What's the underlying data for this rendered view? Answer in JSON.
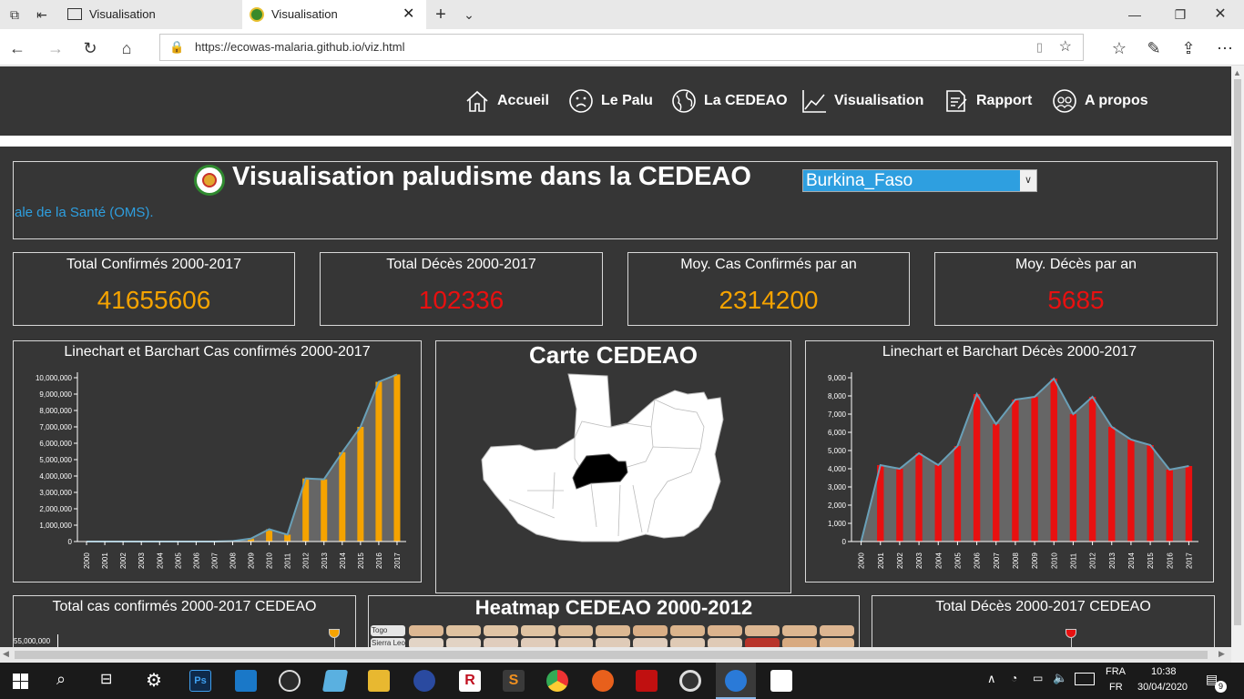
{
  "browser": {
    "tabs": [
      {
        "title": "Visualisation",
        "active": false
      },
      {
        "title": "Visualisation",
        "active": true
      }
    ],
    "url": "https://ecowas-malaria.github.io/viz.html"
  },
  "nav": {
    "items": [
      {
        "label": "Accueil",
        "icon": "home-icon"
      },
      {
        "label": "Le Palu",
        "icon": "sad-face-icon"
      },
      {
        "label": "La CEDEAO",
        "icon": "globe-icon"
      },
      {
        "label": "Visualisation",
        "icon": "line-chart-icon"
      },
      {
        "label": "Rapport",
        "icon": "report-icon"
      },
      {
        "label": "A propos",
        "icon": "people-icon"
      }
    ]
  },
  "header": {
    "title": "Visualisation paludisme dans la CEDEAO",
    "country_select": "Burkina_Faso",
    "scroll_text": "ale de la Santé (OMS)."
  },
  "kpis": [
    {
      "label": "Total Confirmés 2000-2017",
      "value": "41655606",
      "color": "#f5a300"
    },
    {
      "label": "Total Décès 2000-2017",
      "value": "102336",
      "color": "#e81010"
    },
    {
      "label": "Moy. Cas Confirmés par an",
      "value": "2314200",
      "color": "#f5a300"
    },
    {
      "label": "Moy. Décès par an",
      "value": "5685",
      "color": "#e81010"
    }
  ],
  "panels": {
    "cases_chart_title": "Linechart et Barchart Cas confirmés 2000-2017",
    "map_title": "Carte CEDEAO",
    "deaths_chart_title": "Linechart et Barchart Décès 2000-2017",
    "total_cases_title": "Total cas confirmés 2000-2017 CEDEAO",
    "total_cases_tick": "55,000,000",
    "heatmap_title": "Heatmap CEDEAO 2000-2012",
    "heatmap_rows": [
      "Togo",
      "Sierra Leone"
    ],
    "total_deaths_title": "Total Décès 2000-2017 CEDEAO"
  },
  "chart_data": [
    {
      "type": "bar",
      "title": "Linechart et Barchart Cas confirmés 2000-2017",
      "categories": [
        "2000",
        "2001",
        "2002",
        "2003",
        "2004",
        "2005",
        "2006",
        "2007",
        "2008",
        "2009",
        "2010",
        "2011",
        "2012",
        "2013",
        "2014",
        "2015",
        "2016",
        "2017"
      ],
      "values": [
        0,
        0,
        0,
        0,
        0,
        0,
        0,
        0,
        30000,
        180000,
        750000,
        420000,
        3850000,
        3800000,
        5450000,
        7000000,
        9750000,
        10200000
      ],
      "ylim": [
        0,
        10000000
      ],
      "yticks": [
        "0",
        "1,000,000",
        "2,000,000",
        "3,000,000",
        "4,000,000",
        "5,000,000",
        "6,000,000",
        "7,000,000",
        "8,000,000",
        "9,000,000",
        "10,000,000"
      ],
      "bar_color": "#f5a300"
    },
    {
      "type": "bar",
      "title": "Linechart et Barchart Décès 2000-2017",
      "categories": [
        "2000",
        "2001",
        "2002",
        "2003",
        "2004",
        "2005",
        "2006",
        "2007",
        "2008",
        "2009",
        "2010",
        "2011",
        "2012",
        "2013",
        "2014",
        "2015",
        "2016",
        "2017"
      ],
      "values": [
        0,
        4200,
        4000,
        4850,
        4200,
        5250,
        8100,
        6450,
        7800,
        7950,
        8950,
        7000,
        7950,
        6300,
        5600,
        5300,
        3950,
        4150
      ],
      "ylim": [
        0,
        9000
      ],
      "yticks": [
        "0",
        "1,000",
        "2,000",
        "3,000",
        "4,000",
        "5,000",
        "6,000",
        "7,000",
        "8,000",
        "9,000"
      ],
      "bar_color": "#e81010"
    }
  ],
  "system": {
    "lang": "FRA",
    "lang2": "FR",
    "time": "10:38",
    "date": "30/04/2020",
    "notifications": "9"
  }
}
